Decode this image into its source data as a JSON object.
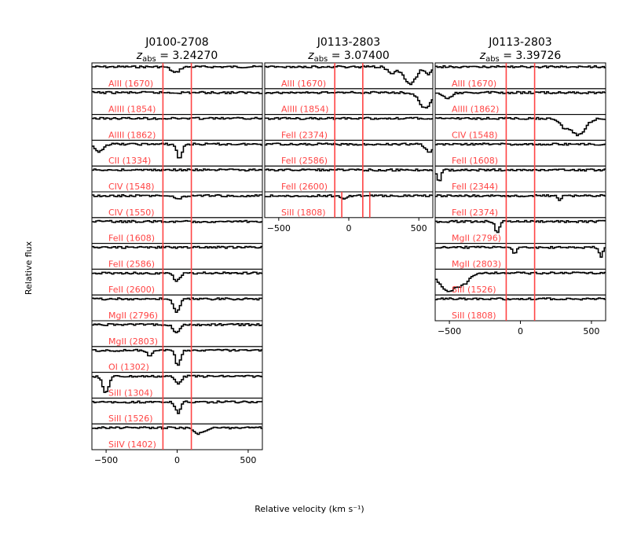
{
  "chart_data": {
    "type": "line",
    "ylabel": "Relative flux",
    "xlabel": "Relative velocity (km s⁻¹)",
    "xlim": [
      -600,
      600
    ],
    "xticks": [
      -500,
      0,
      500
    ],
    "line_color": "#000000",
    "marker_color": "#ff4444",
    "label_color": "#ff4444",
    "panels": [
      {
        "title_line1": "J0100-2708",
        "title_line2": "z",
        "title_sub": "abs",
        "title_eq": " = 3.24270",
        "markers": [
          -100,
          100
        ],
        "rows": [
          {
            "label": "AlII (1670)",
            "features": [
              {
                "v": -20,
                "depth": 0.3,
                "w": 40
              }
            ]
          },
          {
            "label": "AlIII (1854)",
            "features": []
          },
          {
            "label": "AlIII (1862)",
            "features": []
          },
          {
            "label": "CII (1334)",
            "features": [
              {
                "v": -560,
                "depth": 0.4,
                "w": 40
              },
              {
                "v": 10,
                "depth": 0.75,
                "w": 25
              }
            ]
          },
          {
            "label": "CIV (1548)",
            "features": []
          },
          {
            "label": "CIV (1550)",
            "features": [
              {
                "v": 0,
                "depth": 0.15,
                "w": 40
              }
            ]
          },
          {
            "label": "FeII (1608)",
            "features": []
          },
          {
            "label": "FeII (2586)",
            "features": []
          },
          {
            "label": "FeII (2600)",
            "features": [
              {
                "v": -10,
                "depth": 0.4,
                "w": 30
              }
            ]
          },
          {
            "label": "MgII (2796)",
            "features": [
              {
                "v": -10,
                "depth": 0.7,
                "w": 30
              }
            ]
          },
          {
            "label": "MgII (2803)",
            "features": [
              {
                "v": -10,
                "depth": 0.45,
                "w": 30
              }
            ]
          },
          {
            "label": "OI (1302)",
            "features": [
              {
                "v": 0,
                "depth": 0.8,
                "w": 25
              },
              {
                "v": -200,
                "depth": 0.25,
                "w": 25
              }
            ]
          },
          {
            "label": "SiII (1304)",
            "features": [
              {
                "v": -510,
                "depth": 0.85,
                "w": 30
              },
              {
                "v": 0,
                "depth": 0.35,
                "w": 30
              }
            ]
          },
          {
            "label": "SiII (1526)",
            "features": [
              {
                "v": 0,
                "depth": 0.55,
                "w": 25
              }
            ]
          },
          {
            "label": "SiIV (1402)",
            "features": [
              {
                "v": 150,
                "depth": 0.3,
                "w": 50
              }
            ]
          }
        ]
      },
      {
        "title_line1": "J0113-2803",
        "title_line2": "z",
        "title_sub": "abs",
        "title_eq": " = 3.07400",
        "markers": [
          -100,
          100
        ],
        "rows": [
          {
            "label": "AlII (1670)",
            "features": [
              {
                "v": 430,
                "depth": 0.9,
                "w": 60
              },
              {
                "v": 300,
                "depth": 0.35,
                "w": 40
              },
              {
                "v": 560,
                "depth": 0.4,
                "w": 30
              }
            ]
          },
          {
            "label": "AlIII (1854)",
            "features": [
              {
                "v": 540,
                "depth": 0.8,
                "w": 60
              }
            ]
          },
          {
            "label": "FeII (2374)",
            "features": []
          },
          {
            "label": "FeII (2586)",
            "features": [
              {
                "v": 570,
                "depth": 0.4,
                "w": 40
              }
            ]
          },
          {
            "label": "FeII (2600)",
            "features": []
          },
          {
            "label": "SiII (1808)",
            "features": [
              {
                "v": -40,
                "depth": 0.2,
                "w": 30
              }
            ]
          }
        ],
        "extra_markers_last": [
          -50,
          150
        ]
      },
      {
        "title_line1": "J0113-2803",
        "title_line2": "z",
        "title_sub": "abs",
        "title_eq": " = 3.39726",
        "markers": [
          -100,
          100
        ],
        "rows": [
          {
            "label": "AlII (1670)",
            "features": []
          },
          {
            "label": "AlIII (1862)",
            "features": [
              {
                "v": -520,
                "depth": 0.3,
                "w": 40
              }
            ]
          },
          {
            "label": "CIV (1548)",
            "features": [
              {
                "v": 400,
                "depth": 0.85,
                "w": 70
              },
              {
                "v": 300,
                "depth": 0.4,
                "w": 40
              }
            ]
          },
          {
            "label": "FeII (1608)",
            "features": []
          },
          {
            "label": "FeII (2344)",
            "features": [
              {
                "v": -580,
                "depth": 0.6,
                "w": 20
              }
            ]
          },
          {
            "label": "FeII (2374)",
            "features": [
              {
                "v": 270,
                "depth": 0.25,
                "w": 15
              }
            ]
          },
          {
            "label": "MgII (2796)",
            "features": [
              {
                "v": -170,
                "depth": 0.55,
                "w": 20
              }
            ]
          },
          {
            "label": "MgII (2803)",
            "features": [
              {
                "v": -50,
                "depth": 0.3,
                "w": 20
              },
              {
                "v": 560,
                "depth": 0.55,
                "w": 15
              }
            ]
          },
          {
            "label": "SiII (1526)",
            "features": [
              {
                "v": -520,
                "depth": 0.9,
                "w": 80
              },
              {
                "v": -410,
                "depth": 0.5,
                "w": 60
              }
            ]
          },
          {
            "label": "SiII (1808)",
            "features": []
          }
        ]
      }
    ]
  }
}
